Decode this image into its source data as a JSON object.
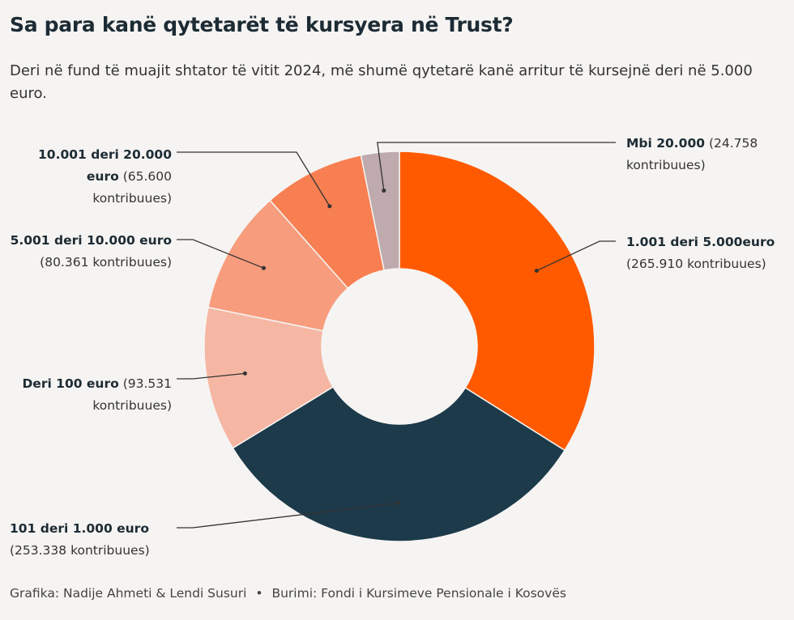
{
  "title": "Sa para kanë qytetarët të kursyera në Trust?",
  "subtitle": "Deri në fund të muajit shtator të vitit 2024, më shumë qytetarë kanë arritur të kursejnë deri në 5.000 euro.",
  "chart_data": {
    "type": "pie",
    "variant": "donut",
    "title": "Sa para kanë qytetarët të kursyera në Trust?",
    "unit": "kontribuues",
    "slices": [
      {
        "name": "1.001 deri 5.000euro",
        "bold": "1.001 deri 5.000euro",
        "text": "(265.910 kontribuues)",
        "value": 265910,
        "color": "#ff5a00"
      },
      {
        "name": "101 deri 1.000 euro",
        "bold": "101 deri 1.000 euro",
        "text": "(253.338 kontribuues)",
        "value": 253338,
        "color": "#1c3a4a"
      },
      {
        "name": "Deri 100 euro",
        "bold": "Deri 100 euro",
        "text": "(93.531 kontribuues)",
        "value": 93531,
        "color": "#f5b7a3"
      },
      {
        "name": "5.001 deri 10.000 euro",
        "bold": "5.001 deri 10.000 euro",
        "text": "(80.361 kontribuues)",
        "value": 80361,
        "color": "#f79c7d"
      },
      {
        "name": "10.001 deri 20.000 euro",
        "bold": "10.001 deri 20.000 euro",
        "text": "(65.600 kontribuues)",
        "value": 65600,
        "color": "#f77f52"
      },
      {
        "name": "Mbi 20.000",
        "bold": "Mbi 20.000",
        "text": "(24.758 kontribuues)",
        "value": 24758,
        "color": "#bfaaad"
      }
    ]
  },
  "footer": {
    "credit": "Grafika: Nadije Ahmeti & Lendi Susuri",
    "separator": "•",
    "source": "Burimi: Fondi i Kursimeve Pensionale i Kosovës"
  }
}
